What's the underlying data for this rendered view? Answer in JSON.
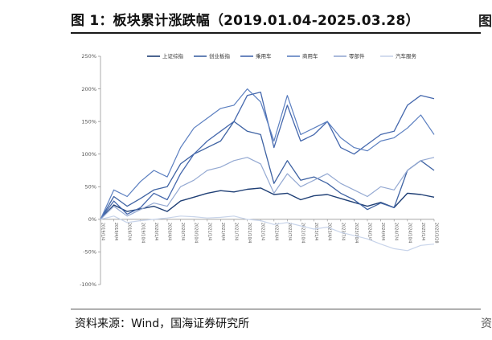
{
  "header": {
    "title": "图 1：板块累计涨跌幅（2019.01.04-2025.03.28）",
    "edge_glyph": "图"
  },
  "footer": {
    "source": "资料来源：Wind，国海证券研究所",
    "edge_glyph": "资"
  },
  "chart_data": {
    "type": "line",
    "title": "板块累计涨跌幅（2019.01.04-2025.03.28）",
    "xlabel": "",
    "ylabel": "",
    "ylim": [
      -100,
      250
    ],
    "yticks": [
      -100,
      -50,
      0,
      50,
      100,
      150,
      200,
      250
    ],
    "ytick_labels": [
      "-100%",
      "-50%",
      "0%",
      "50%",
      "100%",
      "150%",
      "200%",
      "250%"
    ],
    "x": [
      "2019/1/4",
      "2019/4/4",
      "2019/7/4",
      "2019/10/4",
      "2020/1/4",
      "2020/4/4",
      "2020/7/4",
      "2020/10/4",
      "2021/1/4",
      "2021/4/4",
      "2021/7/4",
      "2021/10/4",
      "2022/1/4",
      "2022/4/4",
      "2022/7/4",
      "2022/10/4",
      "2023/1/4",
      "2023/4/4",
      "2023/7/4",
      "2023/10/4",
      "2024/1/4",
      "2024/4/4",
      "2024/7/4",
      "2024/10/4",
      "2025/1/4",
      "2025/3/28"
    ],
    "series": [
      {
        "name": "上证综指",
        "color": "#1f3f75",
        "width": 1.4,
        "values": [
          0,
          22,
          12,
          16,
          20,
          12,
          28,
          34,
          40,
          44,
          42,
          46,
          48,
          38,
          40,
          30,
          36,
          38,
          32,
          26,
          20,
          26,
          18,
          40,
          38,
          34
        ]
      },
      {
        "name": "创业板指",
        "color": "#3f63a3",
        "width": 1.3,
        "values": [
          0,
          35,
          20,
          32,
          45,
          50,
          85,
          100,
          110,
          120,
          150,
          135,
          130,
          55,
          90,
          60,
          65,
          55,
          40,
          30,
          15,
          25,
          18,
          75,
          90,
          75
        ]
      },
      {
        "name": "乘用车",
        "color": "#4568ad",
        "width": 1.3,
        "values": [
          0,
          28,
          8,
          18,
          40,
          30,
          70,
          100,
          120,
          135,
          150,
          190,
          195,
          110,
          175,
          120,
          130,
          150,
          110,
          100,
          115,
          130,
          135,
          175,
          190,
          185
        ]
      },
      {
        "name": "商用车",
        "color": "#5b7fc0",
        "width": 1.2,
        "values": [
          0,
          45,
          35,
          58,
          75,
          65,
          110,
          140,
          155,
          170,
          175,
          200,
          180,
          120,
          190,
          130,
          140,
          150,
          125,
          110,
          105,
          120,
          125,
          140,
          160,
          130
        ]
      },
      {
        "name": "零部件",
        "color": "#94a9d2",
        "width": 1.2,
        "values": [
          0,
          20,
          5,
          15,
          25,
          20,
          50,
          60,
          75,
          80,
          90,
          95,
          85,
          40,
          70,
          50,
          60,
          70,
          55,
          45,
          35,
          50,
          45,
          75,
          90,
          95
        ]
      },
      {
        "name": "汽车服务",
        "color": "#c8d4ea",
        "width": 1.2,
        "values": [
          0,
          5,
          -5,
          -2,
          0,
          2,
          5,
          4,
          2,
          3,
          5,
          0,
          -2,
          -8,
          -5,
          -10,
          -15,
          -12,
          -20,
          -25,
          -30,
          -38,
          -45,
          -48,
          -40,
          -38
        ]
      }
    ],
    "legend": [
      "上证综指",
      "创业板指",
      "乘用车",
      "商用车",
      "零部件",
      "汽车服务"
    ],
    "legend_position": "top",
    "grid": false
  }
}
